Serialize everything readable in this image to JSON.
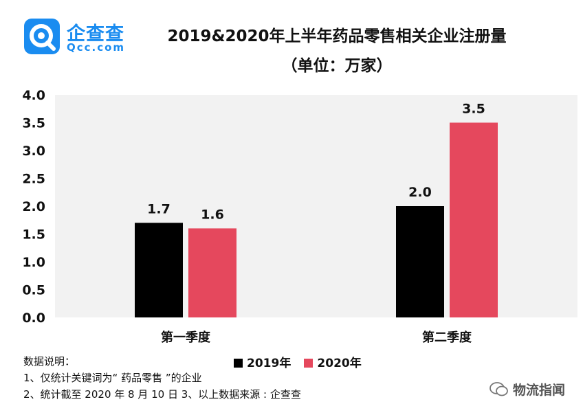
{
  "logo": {
    "name": "企查查",
    "url": "Qcc.com"
  },
  "title": "2019&2020年上半年药品零售相关企业注册量",
  "subtitle": "（单位：万家）",
  "chart_data": {
    "type": "bar",
    "categories": [
      "第一季度",
      "第二季度"
    ],
    "series": [
      {
        "name": "2019年",
        "values": [
          1.7,
          2.0
        ],
        "color": "#000000"
      },
      {
        "name": "2020年",
        "values": [
          1.6,
          3.5
        ],
        "color": "#e5485d"
      }
    ],
    "ylim": [
      0,
      4.0
    ],
    "yticks": [
      "0.0",
      "0.5",
      "1.0",
      "1.5",
      "2.0",
      "2.5",
      "3.0",
      "3.5",
      "4.0"
    ],
    "value_labels": [
      [
        "1.7",
        "2.0"
      ],
      [
        "1.6",
        "3.5"
      ]
    ],
    "plot_background": "#f2f2f2"
  },
  "notes": [
    "数据说明：",
    "1、仅统计关键词为“ 药品零售 ”的企业",
    "2、统计截至 2020 年 8 月 10 日 3、以上数据来源 : 企查查"
  ],
  "watermark": "物流指闻"
}
